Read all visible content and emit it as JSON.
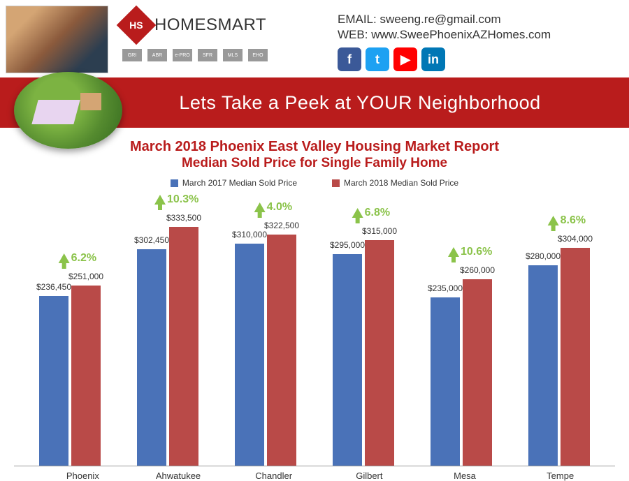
{
  "header": {
    "brand_name": "HOMESMART",
    "brand_diamond_text": "HS",
    "certifications": [
      "GRI",
      "ABR",
      "e-PRO",
      "SFR",
      "MLS",
      "EHO"
    ],
    "contact": {
      "email_label": "EMAIL:",
      "email_value": "sweeng.re@gmail.com",
      "web_label": "WEB:",
      "web_value": "www.SweePhoenixAZHomes.com"
    },
    "social": [
      {
        "name": "facebook",
        "glyph": "f",
        "bg": "#3b5998"
      },
      {
        "name": "twitter",
        "glyph": "t",
        "bg": "#1da1f2"
      },
      {
        "name": "youtube",
        "glyph": "▶",
        "bg": "#ff0000"
      },
      {
        "name": "linkedin",
        "glyph": "in",
        "bg": "#0077b5"
      }
    ]
  },
  "banner": {
    "text": "Lets Take a Peek at YOUR Neighborhood",
    "bg_color": "#b91c1c"
  },
  "chart": {
    "type": "bar",
    "title": "March 2018 Phoenix East Valley Housing Market Report",
    "subtitle": "Median Sold Price for Single Family Home",
    "title_color": "#b91c1c",
    "legend": [
      {
        "label": "March 2017 Median Sold Price",
        "color": "#4a72b8"
      },
      {
        "label": "March 2018 Median Sold Price",
        "color": "#b94a48"
      }
    ],
    "series_colors": {
      "2017": "#4a72b8",
      "2018": "#b94a48"
    },
    "pct_color": "#8bc34a",
    "y_max": 380000,
    "categories": [
      {
        "city": "Phoenix",
        "v2017": 236450,
        "v2018": 251000,
        "pct": "6.2%",
        "l2017": "$236,450",
        "l2018": "$251,000"
      },
      {
        "city": "Ahwatukee",
        "v2017": 302450,
        "v2018": 333500,
        "pct": "10.3%",
        "l2017": "$302,450",
        "l2018": "$333,500"
      },
      {
        "city": "Chandler",
        "v2017": 310000,
        "v2018": 322500,
        "pct": "4.0%",
        "l2017": "$310,000",
        "l2018": "$322,500"
      },
      {
        "city": "Gilbert",
        "v2017": 295000,
        "v2018": 315000,
        "pct": "6.8%",
        "l2017": "$295,000",
        "l2018": "$315,000"
      },
      {
        "city": "Mesa",
        "v2017": 235000,
        "v2018": 260000,
        "pct": "10.6%",
        "l2017": "$235,000",
        "l2018": "$260,000"
      },
      {
        "city": "Tempe",
        "v2017": 280000,
        "v2018": 304000,
        "pct": "8.6%",
        "l2017": "$280,000",
        "l2018": "$304,000"
      }
    ]
  }
}
